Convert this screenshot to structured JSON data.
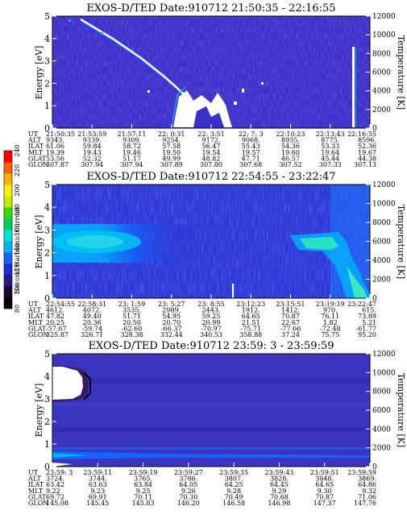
{
  "colorbar": {
    "label": "Second Harmonic Current",
    "ticks": [
      "80",
      "100",
      "120",
      "140",
      "160",
      "180",
      "200",
      "220",
      "240"
    ],
    "colors": [
      "#000000",
      "#1a0a30",
      "#2a1a80",
      "#1e2ce0",
      "#1464ff",
      "#00b4ff",
      "#00e4d8",
      "#00cc60",
      "#30e000",
      "#c0f000",
      "#ffee00",
      "#ffb000",
      "#ff6000",
      "#ff0000"
    ]
  },
  "chart_data": [
    {
      "type": "heatmap",
      "title": "EXOS-D/TED   Date:910712  21:50:35 - 22:16:55",
      "ylabel": "Energy [eV]",
      "y2label": "Temperature [K]",
      "ylim": [
        0,
        5
      ],
      "y2lim": [
        0,
        12000
      ],
      "yticks": [
        "0",
        "1",
        "2",
        "3",
        "4",
        "5"
      ],
      "y2ticks": [
        "0",
        "2000",
        "4000",
        "6000",
        "8000",
        "10000",
        "12000"
      ],
      "table": {
        "labels": [
          "UT",
          "ALT",
          "ILAT",
          "MLT",
          "GLAT",
          "GLON"
        ],
        "columns": [
          [
            "21:50:35",
            "9343.",
            "61.06",
            "19.39",
            "53.56",
            "307.87"
          ],
          [
            "21:53:59",
            "9339.",
            "59.84",
            "19.43",
            "52.32",
            "307.94"
          ],
          [
            "21:57:11",
            "9309.",
            "58.72",
            "19.46",
            "51.17",
            "307.94"
          ],
          [
            "22: 0:31",
            "9254.",
            "57.58",
            "19.50",
            "49.99",
            "307.89"
          ],
          [
            "22: 3:51",
            "9172.",
            "56.47",
            "19.54",
            "48.82",
            "307.80"
          ],
          [
            "22: 7: 3",
            "9068.",
            "55.43",
            "19.57",
            "47.71",
            "307.68"
          ],
          [
            "22:10:23",
            "8935.",
            "54.36",
            "19.60",
            "46.57",
            "307.52"
          ],
          [
            "22:13:43",
            "8775.",
            "53.33",
            "19.64",
            "45.44",
            "307.33"
          ],
          [
            "22:16:55",
            "8596.",
            "52.36",
            "19.67",
            "44.38",
            "307.13"
          ]
        ]
      }
    },
    {
      "type": "heatmap",
      "title": "EXOS-D/TED   Date:910712  22:54:55 - 23:22:47",
      "ylabel": "Energy [eV]",
      "y2label": "Temperature [K]",
      "ylim": [
        0,
        5
      ],
      "y2lim": [
        0,
        12000
      ],
      "yticks": [
        "0",
        "1",
        "2",
        "3",
        "4",
        "5"
      ],
      "y2ticks": [
        "0",
        "2000",
        "4000",
        "6000",
        "8000",
        "10000",
        "12000"
      ],
      "table": {
        "labels": [
          "UT",
          "ALT",
          "ILAT",
          "MLT",
          "GLAT",
          "GLON"
        ],
        "columns": [
          [
            "22:54:55",
            "4612.",
            "47.82",
            "20.25",
            "-57.67",
            "325.87"
          ],
          [
            "22:58:31",
            "4072.",
            "49.40",
            "20.36",
            "-59.74",
            "326.71"
          ],
          [
            "23: 1:59",
            "3535.",
            "51.71",
            "20.50",
            "-62.60",
            "328.38"
          ],
          [
            "23: 5:27",
            "2989.",
            "54.95",
            "20.70",
            "-66.37",
            "332.44"
          ],
          [
            "23: 8:55",
            "2443.",
            "59.25",
            "20.99",
            "-70.97",
            "340.53"
          ],
          [
            "23:12:23",
            "1912.",
            "64.65",
            "21.51",
            "-75.71",
            "358.88"
          ],
          [
            "23:15:51",
            "1412.",
            "70.87",
            "22.67",
            "-77.66",
            "37.24"
          ],
          [
            "23:19:19",
            "970.",
            "76.11",
            "1.82",
            "-72.48",
            "75.75"
          ],
          [
            "23:22:47",
            "615.",
            "73.89",
            "5.21",
            "-61.77",
            "95.20"
          ]
        ]
      }
    },
    {
      "type": "heatmap",
      "title": "EXOS-D/TED   Date:910712  23:59: 3 - 23:59:59",
      "ylabel": "Energy [eV]",
      "y2label": "Temperature [K]",
      "ylim": [
        0,
        5
      ],
      "y2lim": [
        0,
        12000
      ],
      "yticks": [
        "0",
        "1",
        "2",
        "3",
        "4",
        "5"
      ],
      "y2ticks": [
        "0",
        "2000",
        "4000",
        "6000",
        "8000",
        "10000",
        "12000"
      ],
      "table": {
        "labels": [
          "UT",
          "ALT",
          "ILAT",
          "MLT",
          "GLAT",
          "GLON"
        ],
        "columns": [
          [
            "23:59: 3",
            "3724.",
            "63.42",
            "9.22",
            "69.72",
            "145.08"
          ],
          [
            "23:59:11",
            "3744.",
            "63.63",
            "9.23",
            "69.91",
            "145.45"
          ],
          [
            "23:59:19",
            "3765.",
            "63.84",
            "9.25",
            "70.11",
            "145.83"
          ],
          [
            "23:59:27",
            "3786.",
            "64.05",
            "9.26",
            "70.30",
            "146.20"
          ],
          [
            "23:59:35",
            "3807.",
            "64.25",
            "9.28",
            "70.49",
            "146.58"
          ],
          [
            "23:59:43",
            "3828.",
            "64.45",
            "9.29",
            "70.68",
            "146.98"
          ],
          [
            "23:59:51",
            "3848.",
            "64.65",
            "9.30",
            "70.87",
            "147.37"
          ],
          [
            "23:59:59",
            "3869.",
            "64.86",
            "9.32",
            "71.06",
            "147.76"
          ]
        ]
      }
    }
  ]
}
